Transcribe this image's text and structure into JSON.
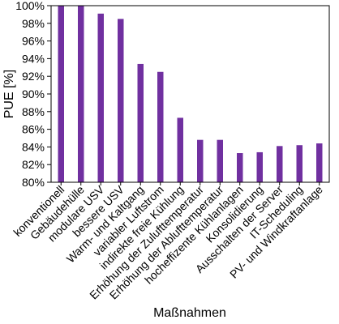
{
  "chart_data": {
    "type": "bar",
    "xlabel": "Maßnahmen",
    "ylabel": "PUE [%]",
    "ylim": [
      80,
      100
    ],
    "y_ticks": [
      80,
      82,
      84,
      86,
      88,
      90,
      92,
      94,
      96,
      98,
      100
    ],
    "y_tick_suffix": "%",
    "grid": false,
    "legend": "none",
    "bar_color": "#7030a0",
    "categories": [
      "konventionell",
      "Gebäudehülle",
      "modulare USV",
      "bessere USV",
      "Warm- und Kaltgang",
      "variabler Luftstrom",
      "indirekte freie Kühlung",
      "Erhöhung der Zulufttemperatur",
      "Erhöhung der Ablufttemperatur",
      "hocheffizente Kühlanlagen",
      "Konsolidierung",
      "Ausschalten der Server",
      "IT-Scheduling",
      "PV- und Windkraftanlage"
    ],
    "values": [
      100,
      100,
      99.1,
      98.5,
      93.4,
      92.5,
      87.3,
      84.8,
      84.8,
      83.3,
      83.4,
      84.1,
      84.2,
      84.4
    ]
  }
}
